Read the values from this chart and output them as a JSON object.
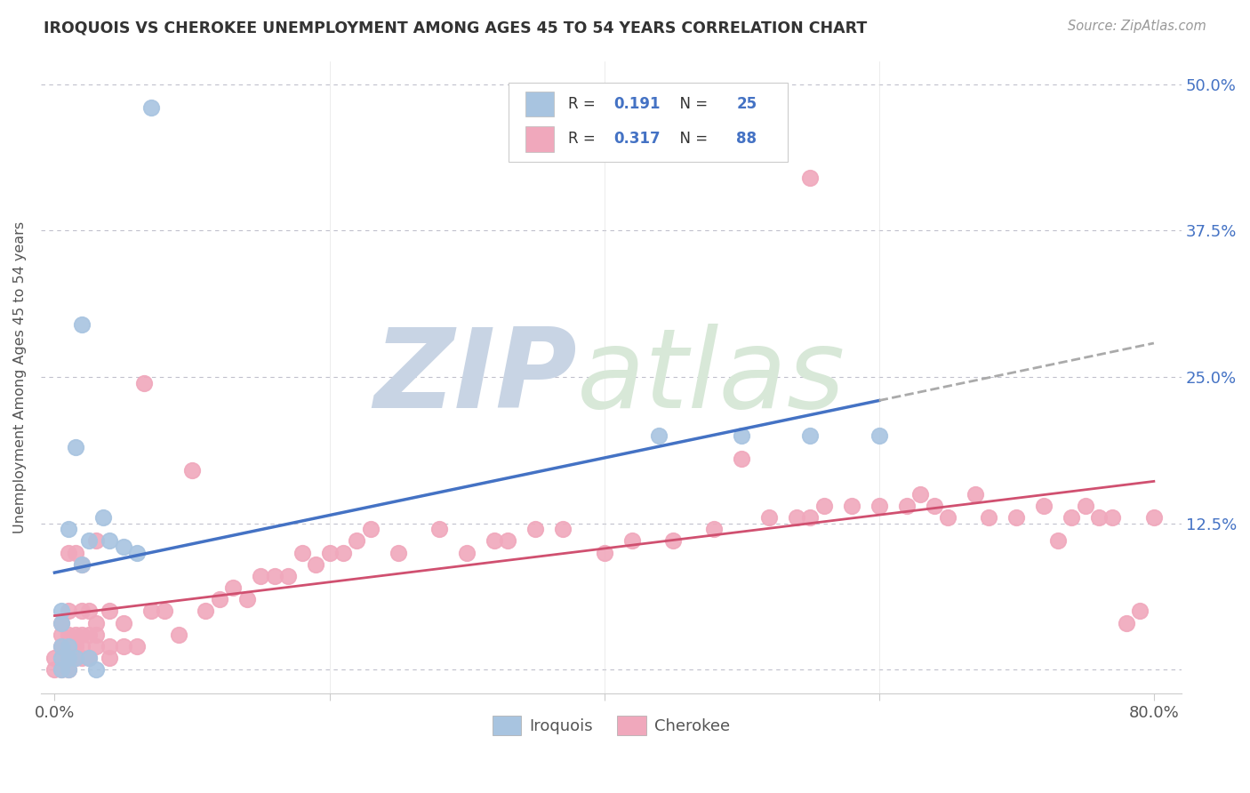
{
  "title": "IROQUOIS VS CHEROKEE UNEMPLOYMENT AMONG AGES 45 TO 54 YEARS CORRELATION CHART",
  "source": "Source: ZipAtlas.com",
  "ylabel": "Unemployment Among Ages 45 to 54 years",
  "iroquois_R": 0.191,
  "iroquois_N": 25,
  "cherokee_R": 0.317,
  "cherokee_N": 88,
  "iroquois_color": "#a8c4e0",
  "cherokee_color": "#f0a8bc",
  "iroquois_line_color": "#4472c4",
  "cherokee_line_color": "#d05070",
  "dashed_line_color": "#aaaaaa",
  "background_color": "#ffffff",
  "grid_color": "#c0c0cc",
  "watermark_zip_color": "#c8d4e4",
  "watermark_atlas_color": "#c8d4e4",
  "xlim": [
    -0.01,
    0.82
  ],
  "ylim": [
    -0.02,
    0.52
  ],
  "iroquois_x": [
    0.005,
    0.005,
    0.005,
    0.005,
    0.005,
    0.01,
    0.01,
    0.01,
    0.01,
    0.015,
    0.015,
    0.02,
    0.02,
    0.025,
    0.025,
    0.03,
    0.035,
    0.04,
    0.05,
    0.06,
    0.07,
    0.44,
    0.5,
    0.55,
    0.6
  ],
  "iroquois_y": [
    0.0,
    0.01,
    0.02,
    0.04,
    0.05,
    0.0,
    0.01,
    0.02,
    0.12,
    0.01,
    0.19,
    0.09,
    0.295,
    0.01,
    0.11,
    0.0,
    0.13,
    0.11,
    0.105,
    0.1,
    0.48,
    0.2,
    0.2,
    0.2,
    0.2
  ],
  "cherokee_x": [
    0.0,
    0.0,
    0.005,
    0.005,
    0.005,
    0.005,
    0.005,
    0.01,
    0.01,
    0.01,
    0.01,
    0.01,
    0.01,
    0.015,
    0.015,
    0.015,
    0.015,
    0.02,
    0.02,
    0.02,
    0.02,
    0.02,
    0.025,
    0.025,
    0.025,
    0.03,
    0.03,
    0.03,
    0.03,
    0.04,
    0.04,
    0.04,
    0.05,
    0.05,
    0.06,
    0.065,
    0.07,
    0.08,
    0.09,
    0.1,
    0.11,
    0.12,
    0.13,
    0.14,
    0.15,
    0.16,
    0.17,
    0.18,
    0.19,
    0.2,
    0.21,
    0.22,
    0.23,
    0.25,
    0.28,
    0.3,
    0.32,
    0.33,
    0.35,
    0.37,
    0.4,
    0.42,
    0.45,
    0.48,
    0.5,
    0.52,
    0.54,
    0.55,
    0.56,
    0.58,
    0.6,
    0.62,
    0.63,
    0.64,
    0.65,
    0.67,
    0.68,
    0.7,
    0.72,
    0.73,
    0.74,
    0.75,
    0.76,
    0.77,
    0.78,
    0.79,
    0.8,
    0.55
  ],
  "cherokee_y": [
    0.0,
    0.01,
    0.0,
    0.01,
    0.02,
    0.03,
    0.04,
    0.0,
    0.01,
    0.02,
    0.03,
    0.05,
    0.1,
    0.01,
    0.02,
    0.03,
    0.1,
    0.01,
    0.02,
    0.03,
    0.05,
    0.09,
    0.01,
    0.03,
    0.05,
    0.02,
    0.03,
    0.04,
    0.11,
    0.01,
    0.02,
    0.05,
    0.02,
    0.04,
    0.02,
    0.245,
    0.05,
    0.05,
    0.03,
    0.17,
    0.05,
    0.06,
    0.07,
    0.06,
    0.08,
    0.08,
    0.08,
    0.1,
    0.09,
    0.1,
    0.1,
    0.11,
    0.12,
    0.1,
    0.12,
    0.1,
    0.11,
    0.11,
    0.12,
    0.12,
    0.1,
    0.11,
    0.11,
    0.12,
    0.18,
    0.13,
    0.13,
    0.13,
    0.14,
    0.14,
    0.14,
    0.14,
    0.15,
    0.14,
    0.13,
    0.15,
    0.13,
    0.13,
    0.14,
    0.11,
    0.13,
    0.14,
    0.13,
    0.13,
    0.04,
    0.05,
    0.13,
    0.42
  ]
}
